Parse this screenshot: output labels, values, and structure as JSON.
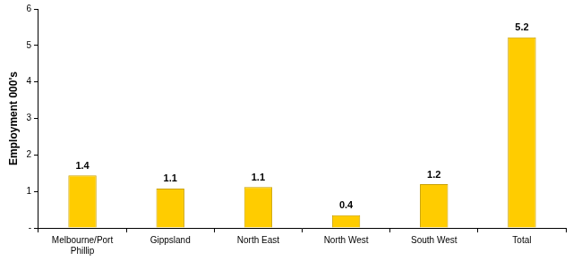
{
  "chart_data": {
    "type": "bar",
    "categories": [
      "Melbourne/Port Phillip",
      "Gippsland",
      "North East",
      "North West",
      "South West",
      "Total"
    ],
    "values": [
      1.44,
      1.08,
      1.12,
      0.35,
      1.2,
      5.22
    ],
    "value_labels": [
      "1.4",
      "1.1",
      "1.1",
      "0.4",
      "1.2",
      "5.2"
    ],
    "data_labels": true,
    "color": "#ffcc00",
    "y_label": "Employment 000's",
    "ylim": [
      0,
      6
    ],
    "yticks": [
      {
        "value": 0,
        "label": "-"
      },
      1,
      2,
      3,
      4,
      5,
      6
    ],
    "grid": false
  }
}
